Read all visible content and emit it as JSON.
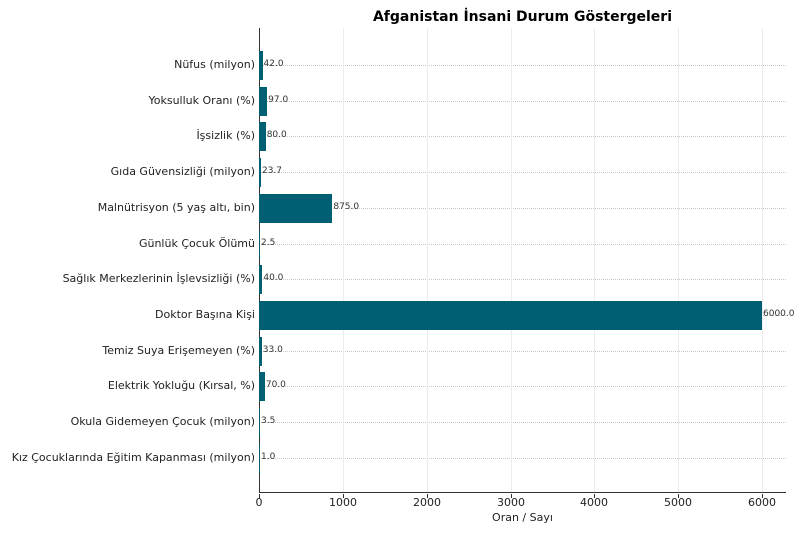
{
  "chart_data": {
    "type": "bar",
    "orientation": "horizontal",
    "title": "Afganistan İnsani Durum Göstergeleri",
    "xlabel": "Oran / Sayı",
    "ylabel": "",
    "xlim": [
      0,
      6300
    ],
    "xticks": [
      0,
      1000,
      2000,
      3000,
      4000,
      5000,
      6000
    ],
    "grid": true,
    "bar_color": "#005f73",
    "categories": [
      "Nüfus (milyon)",
      "Yoksulluk Oranı (%)",
      "İşsizlik (%)",
      "Gıda Güvensizliği (milyon)",
      "Malnütrisyon (5 yaş altı, bin)",
      "Günlük Çocuk Ölümü",
      "Sağlık Merkezlerinin İşlevsizliği (%)",
      "Doktor Başına Kişi",
      "Temiz Suya Erişemeyen (%)",
      "Elektrik Yokluğu (Kırsal, %)",
      "Okula Gidemeyen Çocuk (milyon)",
      "Kız Çocuklarında Eğitim Kapanması (milyon)"
    ],
    "values": [
      42.0,
      97.0,
      80.0,
      23.7,
      875.0,
      2.5,
      40.0,
      6000.0,
      33.0,
      70.0,
      3.5,
      1.0
    ],
    "value_labels": [
      "42.0",
      "97.0",
      "80.0",
      "23.7",
      "875.0",
      "2.5",
      "40.0",
      "6000.0",
      "33.0",
      "70.0",
      "3.5",
      "1.0"
    ]
  }
}
